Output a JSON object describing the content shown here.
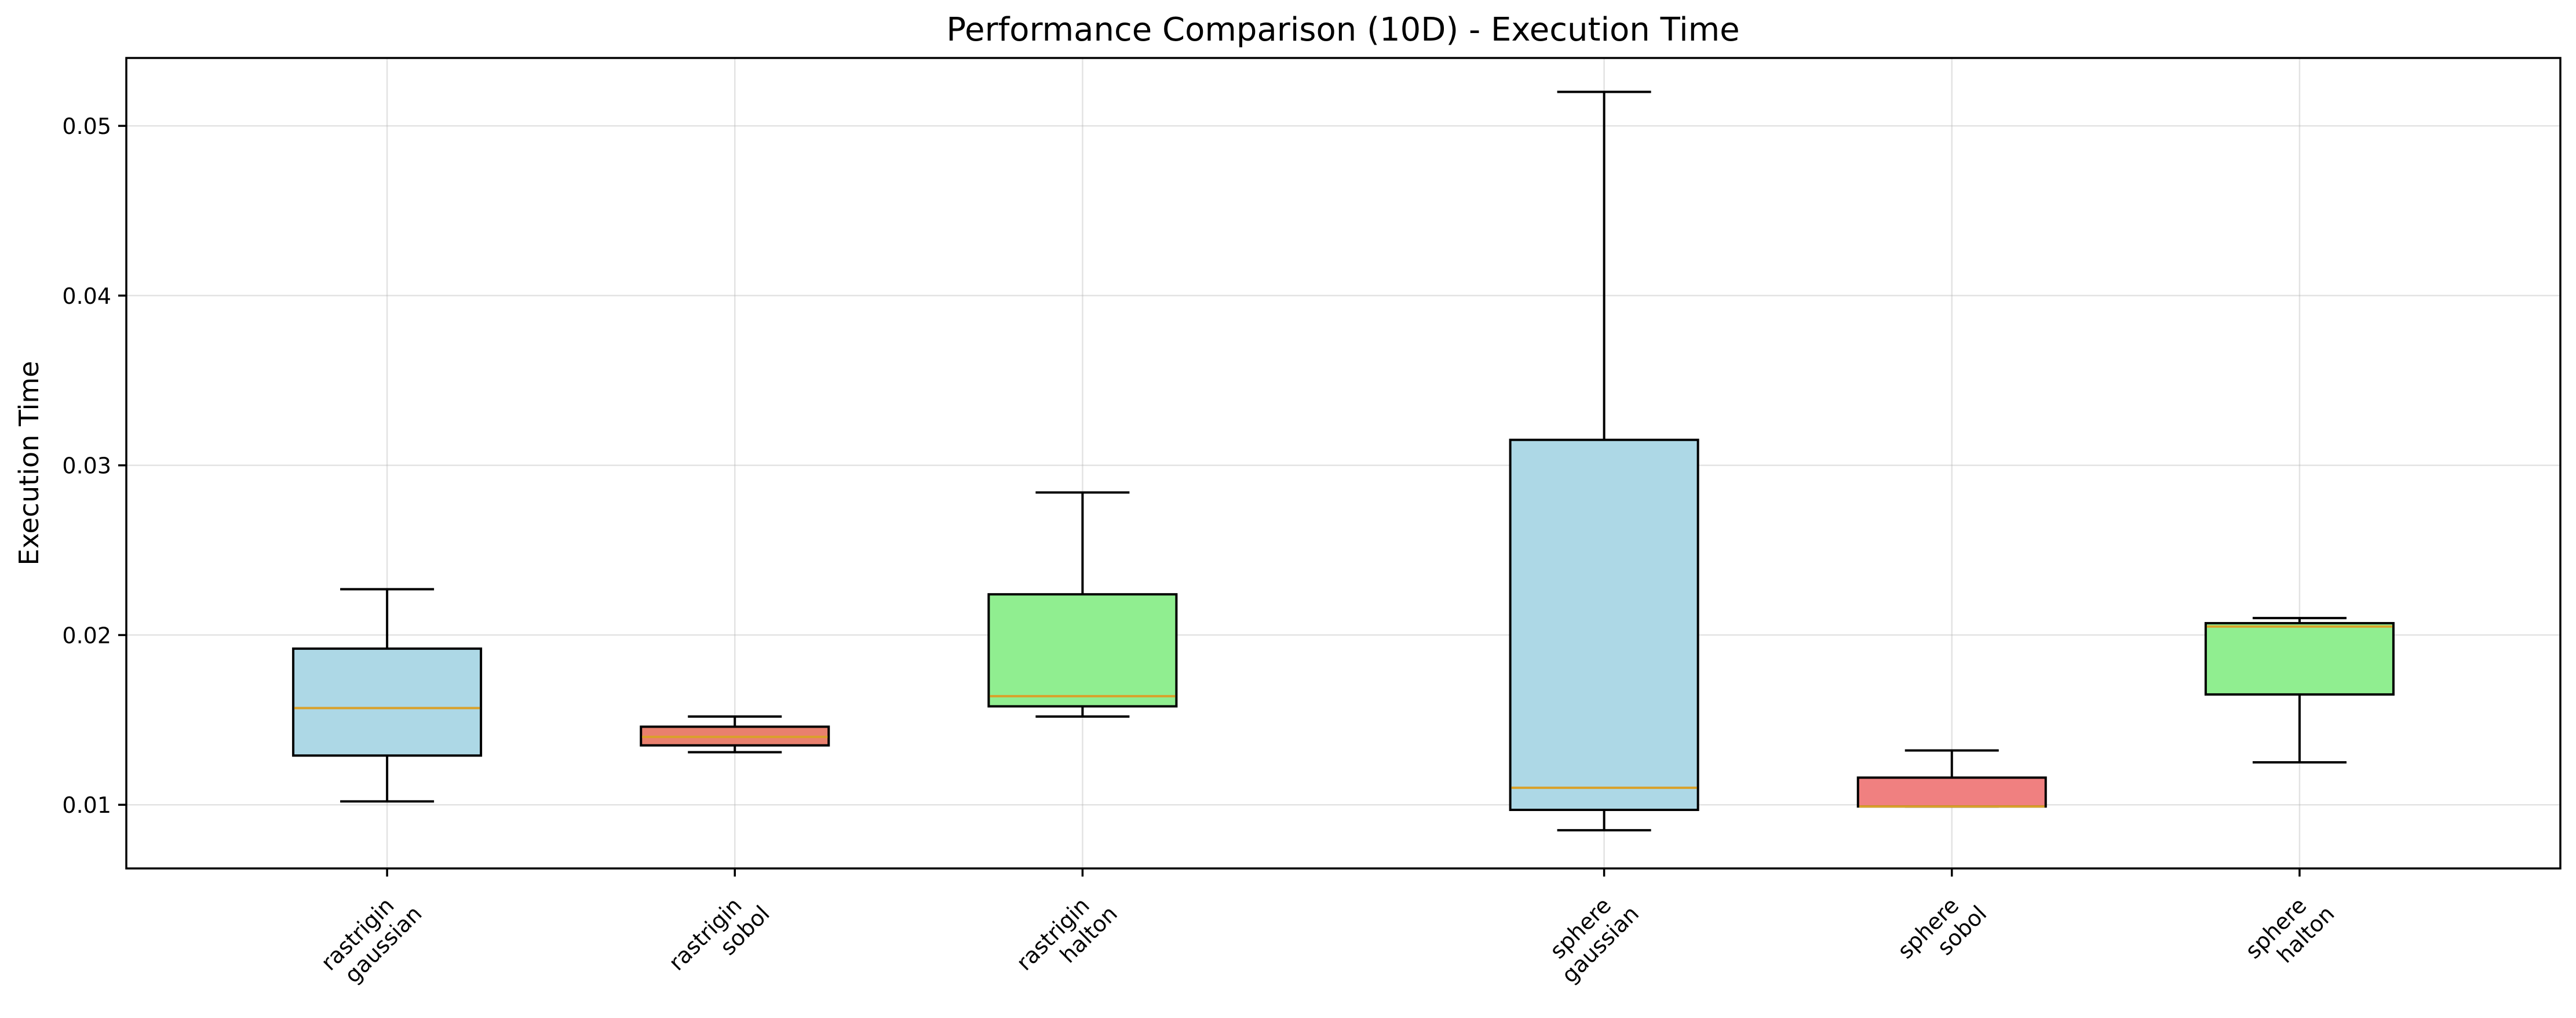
{
  "chart_data": {
    "type": "box",
    "title": "Performance Comparison (10D) - Execution Time",
    "ylabel": "Execution Time",
    "xlabel": "",
    "ylim": [
      0.00625,
      0.054
    ],
    "yticks": [
      0.01,
      0.02,
      0.03,
      0.04,
      0.05
    ],
    "ytick_labels": [
      "0.01",
      "0.02",
      "0.03",
      "0.04",
      "0.05"
    ],
    "grid": true,
    "boxes": [
      {
        "label": [
          "rastrigin",
          "gaussian"
        ],
        "position": 1,
        "min": 0.0102,
        "q1": 0.0129,
        "median": 0.0157,
        "q3": 0.0192,
        "max": 0.0227,
        "color": "#add8e6"
      },
      {
        "label": [
          "rastrigin",
          "sobol"
        ],
        "position": 2,
        "min": 0.0131,
        "q1": 0.0135,
        "median": 0.014,
        "q3": 0.0146,
        "max": 0.0152,
        "color": "#e9806e"
      },
      {
        "label": [
          "rastrigin",
          "halton"
        ],
        "position": 3,
        "min": 0.0152,
        "q1": 0.0158,
        "median": 0.0164,
        "q3": 0.0224,
        "max": 0.0284,
        "color": "#90ee90"
      },
      {
        "label": [
          "sphere",
          "gaussian"
        ],
        "position": 4.5,
        "min": 0.0085,
        "q1": 0.0097,
        "median": 0.011,
        "q3": 0.0315,
        "max": 0.052,
        "color": "#add8e6"
      },
      {
        "label": [
          "sphere",
          "sobol"
        ],
        "position": 5.5,
        "min": 0.0099,
        "q1": 0.0099,
        "median": 0.0099,
        "q3": 0.0116,
        "max": 0.0132,
        "color": "#f08080"
      },
      {
        "label": [
          "sphere",
          "halton"
        ],
        "position": 6.5,
        "min": 0.0125,
        "q1": 0.0165,
        "median": 0.0205,
        "q3": 0.0207,
        "max": 0.021,
        "color": "#90ee90"
      }
    ],
    "median_color": "#d9a12a"
  }
}
